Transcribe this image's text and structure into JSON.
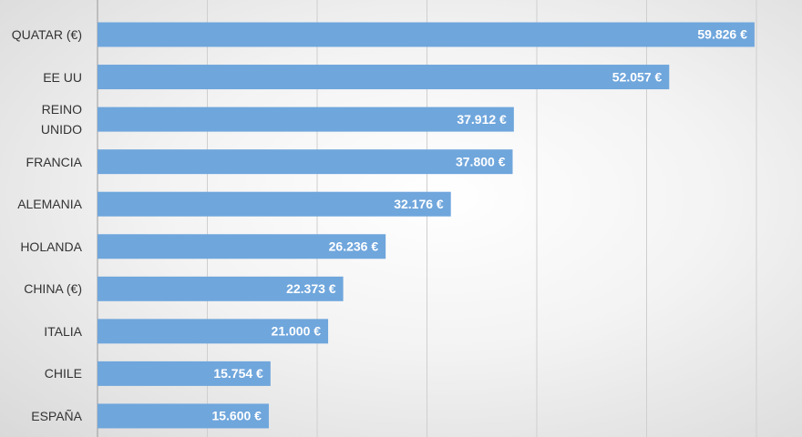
{
  "chart_data": {
    "type": "bar",
    "orientation": "horizontal",
    "categories": [
      "QUATAR (€)",
      "EE UU",
      "REINO UNIDO",
      "FRANCIA",
      "ALEMANIA",
      "HOLANDA",
      "CHINA (€)",
      "ITALIA",
      "CHILE",
      "ESPAÑA"
    ],
    "values": [
      59826,
      52057,
      37912,
      37800,
      32176,
      26236,
      22373,
      21000,
      15754,
      15600
    ],
    "value_labels": [
      "59.826 €",
      "52.057 €",
      "37.912 €",
      "37.800 €",
      "32.176 €",
      "26.236 €",
      "22.373 €",
      "21.000 €",
      "15.754 €",
      "15.600 €"
    ],
    "color": "#6fa6dc",
    "xlim": [
      0,
      60000
    ],
    "xticks": [
      0,
      10000,
      20000,
      30000,
      40000,
      50000,
      60000
    ],
    "grid": true
  }
}
